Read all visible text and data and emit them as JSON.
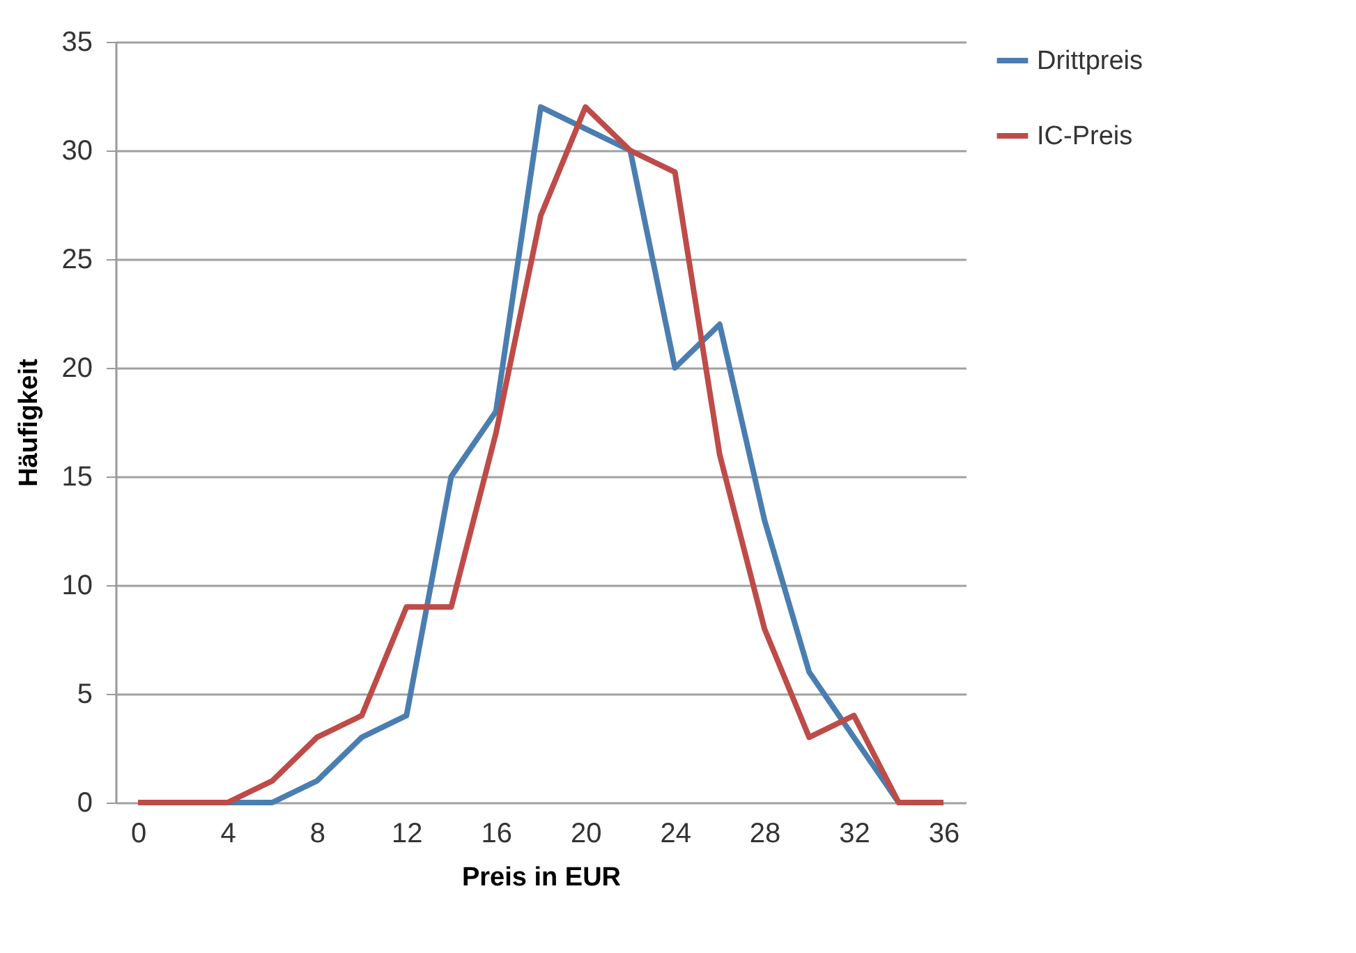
{
  "chart_data": {
    "type": "line",
    "xlabel": "Preis in EUR",
    "ylabel": "Häufigkeit",
    "x": [
      0,
      2,
      4,
      6,
      8,
      10,
      12,
      14,
      16,
      18,
      20,
      22,
      24,
      26,
      28,
      30,
      32,
      34,
      36
    ],
    "xlim": [
      -1,
      37
    ],
    "xticks": [
      0,
      4,
      8,
      12,
      16,
      20,
      24,
      28,
      32,
      36
    ],
    "ylim": [
      0,
      35
    ],
    "yticks": [
      0,
      5,
      10,
      15,
      20,
      25,
      30,
      35
    ],
    "grid": "y",
    "legend": "right",
    "series": [
      {
        "name": "Drittpreis",
        "color": "#4a7eb0",
        "values": [
          0,
          0,
          0,
          0,
          1,
          3,
          4,
          15,
          18,
          32,
          31,
          30,
          20,
          22,
          13,
          6,
          3,
          0,
          0
        ]
      },
      {
        "name": "IC-Preis",
        "color": "#be4b48",
        "values": [
          0,
          0,
          0,
          1,
          3,
          4,
          9,
          9,
          17,
          27,
          32,
          30,
          29,
          16,
          8,
          3,
          4,
          0,
          0
        ]
      }
    ]
  }
}
